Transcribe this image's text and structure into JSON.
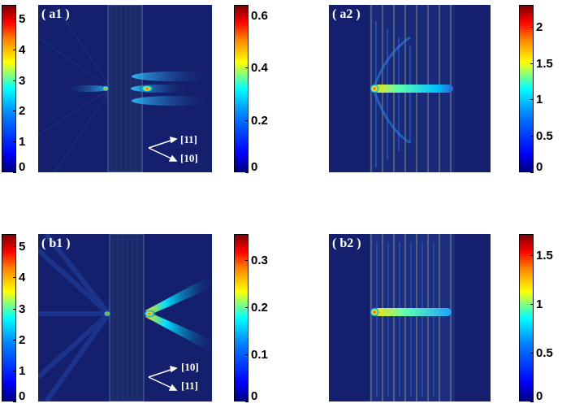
{
  "panels": {
    "a1": {
      "label": "( a1 )",
      "dir_top": "[11]",
      "dir_bottom": "[10]"
    },
    "a2": {
      "label": "( a2 )"
    },
    "b1": {
      "label": "( b1 )",
      "dir_top": "[10]",
      "dir_bottom": "[11]"
    },
    "b2": {
      "label": "( b2 )"
    }
  },
  "colorbars": {
    "a1_left": {
      "ticks": [
        "0",
        "1",
        "2",
        "3",
        "4",
        "5"
      ]
    },
    "a1_right": {
      "ticks": [
        "0",
        "0.2",
        "0.4",
        "0.6"
      ]
    },
    "a2": {
      "ticks": [
        "0",
        "0.5",
        "1",
        "1.5",
        "2"
      ]
    },
    "b1_left": {
      "ticks": [
        "0",
        "1",
        "2",
        "3",
        "4",
        "5"
      ]
    },
    "b1_right": {
      "ticks": [
        "0",
        "0.1",
        "0.2",
        "0.3"
      ]
    },
    "b2": {
      "ticks": [
        "0",
        "0.5",
        "1",
        "1.5"
      ]
    }
  },
  "colors": {
    "background": "#14206e",
    "crystal": "#1a2a6a",
    "beam_core": "#ff2000",
    "beam_mid": "#ffe000",
    "beam_outer": "#00e0ff"
  }
}
